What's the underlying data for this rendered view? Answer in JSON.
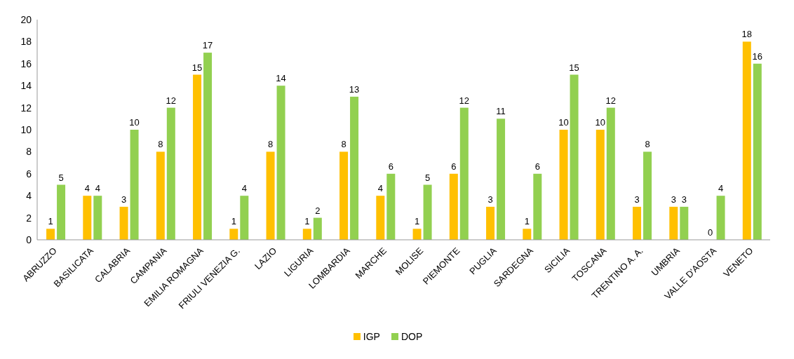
{
  "chart_data": {
    "type": "bar",
    "categories": [
      "ABRUZZO",
      "BASILICATA",
      "CALABRIA",
      "CAMPANIA",
      "EMILIA ROMAGNA",
      "FRIULI VENEZIA G.",
      "LAZIO",
      "LIGURIA",
      "LOMBARDIA",
      "MARCHE",
      "MOLISE",
      "PIEMONTE",
      "PUGLIA",
      "SARDEGNA",
      "SICILIA",
      "TOSCANA",
      "TRENTINO A. A.",
      "UMBRIA",
      "VALLE D'AOSTA",
      "VENETO"
    ],
    "series": [
      {
        "name": "IGP",
        "color": "#ffc000",
        "values": [
          1,
          4,
          3,
          8,
          15,
          1,
          8,
          1,
          8,
          4,
          1,
          6,
          3,
          1,
          10,
          10,
          3,
          3,
          0,
          18
        ]
      },
      {
        "name": "DOP",
        "color": "#92d050",
        "values": [
          5,
          4,
          10,
          12,
          17,
          4,
          14,
          2,
          13,
          6,
          5,
          12,
          11,
          6,
          15,
          12,
          8,
          3,
          4,
          16
        ]
      }
    ],
    "ylim": [
      0,
      20
    ],
    "yticks": [
      0,
      2,
      4,
      6,
      8,
      10,
      12,
      14,
      16,
      18,
      20
    ],
    "grid": false,
    "legend": "bottom",
    "data_labels": true
  }
}
